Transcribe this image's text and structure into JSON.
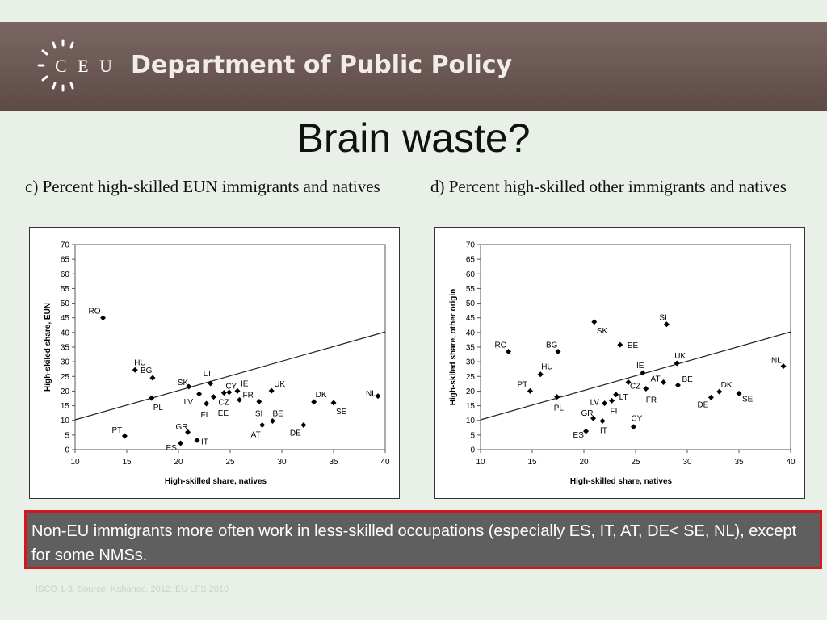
{
  "header": {
    "logo_text": "C E U",
    "department": "Department of Public Policy"
  },
  "slide": {
    "title": "Brain waste?",
    "note": "Non-EU immigrants more often work in less-skilled occupations (especially ES, IT, AT, DE< SE, NL), except for some NMSs.",
    "source": "ISCO 1-3. Source: Kahanec, 2012. EU LFS 2010"
  },
  "colors": {
    "banner": "#6b5652",
    "note_bg": "#5f5f5f",
    "note_border": "#d8151b"
  },
  "chart_data": [
    {
      "type": "scatter",
      "title": "c) Percent high-skilled EUN immigrants and natives",
      "xlabel": "High-skilled share, natives",
      "ylabel": "High-skiled share, EUN",
      "xlim": [
        10,
        40
      ],
      "ylim": [
        0,
        70
      ],
      "xticks": [
        10,
        15,
        20,
        25,
        30,
        35,
        40
      ],
      "yticks": [
        0,
        5,
        10,
        15,
        20,
        25,
        30,
        35,
        40,
        45,
        50,
        55,
        60,
        65,
        70
      ],
      "grid": false,
      "trendline": [
        [
          10,
          10.2
        ],
        [
          40,
          40.2
        ]
      ],
      "points": [
        {
          "label": "RO",
          "x": 12.7,
          "y": 45,
          "lx": -18,
          "ly": -8
        },
        {
          "label": "HU",
          "x": 15.8,
          "y": 27.2,
          "lx": -1,
          "ly": -9
        },
        {
          "label": "BG",
          "x": 17.5,
          "y": 24.5,
          "lx": -15,
          "ly": -9
        },
        {
          "label": "PL",
          "x": 17.4,
          "y": 17.6,
          "lx": 2,
          "ly": 12
        },
        {
          "label": "PT",
          "x": 14.8,
          "y": 4.7,
          "lx": -16,
          "ly": -7
        },
        {
          "label": "SK",
          "x": 21.0,
          "y": 21.5,
          "lx": -14,
          "ly": -5
        },
        {
          "label": "LT",
          "x": 23.1,
          "y": 22.6,
          "lx": -9,
          "ly": -12
        },
        {
          "label": "LV",
          "x": 22.0,
          "y": 19.0,
          "lx": -19,
          "ly": 10
        },
        {
          "label": "CY",
          "x": 24.4,
          "y": 19.4,
          "lx": 2,
          "ly": -8
        },
        {
          "label": "IE",
          "x": 25.7,
          "y": 20.0,
          "lx": 4,
          "ly": -9
        },
        {
          "label": "UK",
          "x": 29.0,
          "y": 20.1,
          "lx": 3,
          "ly": -8
        },
        {
          "label": "FR",
          "x": 25.9,
          "y": 17.0,
          "lx": 4,
          "ly": -6
        },
        {
          "label": "CZ",
          "x": 23.4,
          "y": 18.0,
          "lx": 6,
          "ly": 7
        },
        {
          "label": "EE",
          "x": 24.9,
          "y": 19.6,
          "lx": -14,
          "ly": 26
        },
        {
          "label": "FI",
          "x": 22.7,
          "y": 15.7,
          "lx": -7,
          "ly": 14
        },
        {
          "label": "SI",
          "x": 27.8,
          "y": 16.4,
          "lx": -5,
          "ly": 15
        },
        {
          "label": "BE",
          "x": 29.1,
          "y": 9.8,
          "lx": 0,
          "ly": -9
        },
        {
          "label": "AT",
          "x": 28.1,
          "y": 8.4,
          "lx": -14,
          "ly": 12
        },
        {
          "label": "DE",
          "x": 32.1,
          "y": 8.4,
          "lx": -17,
          "ly": 10
        },
        {
          "label": "DK",
          "x": 33.1,
          "y": 16.3,
          "lx": 2,
          "ly": -9
        },
        {
          "label": "SE",
          "x": 35.0,
          "y": 16.0,
          "lx": 3,
          "ly": 11
        },
        {
          "label": "NL",
          "x": 39.3,
          "y": 18.3,
          "lx": -15,
          "ly": -3
        },
        {
          "label": "GR",
          "x": 20.9,
          "y": 6.0,
          "lx": -15,
          "ly": -6
        },
        {
          "label": "ES",
          "x": 20.2,
          "y": 2.2,
          "lx": -18,
          "ly": 6
        },
        {
          "label": "IT",
          "x": 21.8,
          "y": 3.2,
          "lx": 5,
          "ly": 2
        }
      ]
    },
    {
      "type": "scatter",
      "title": "d) Percent high-skilled other immigrants and natives",
      "xlabel": "High-skilled share, natives",
      "ylabel": "High-skiled share, other origin",
      "xlim": [
        10,
        40
      ],
      "ylim": [
        0,
        70
      ],
      "xticks": [
        10,
        15,
        20,
        25,
        30,
        35,
        40
      ],
      "yticks": [
        0,
        5,
        10,
        15,
        20,
        25,
        30,
        35,
        40,
        45,
        50,
        55,
        60,
        65,
        70
      ],
      "grid": false,
      "trendline": [
        [
          10,
          10.2
        ],
        [
          40,
          40.2
        ]
      ],
      "points": [
        {
          "label": "RO",
          "x": 12.7,
          "y": 33.5,
          "lx": -17,
          "ly": -8
        },
        {
          "label": "BG",
          "x": 17.5,
          "y": 33.5,
          "lx": -15,
          "ly": -8
        },
        {
          "label": "HU",
          "x": 15.8,
          "y": 25.7,
          "lx": 1,
          "ly": -9
        },
        {
          "label": "PT",
          "x": 14.8,
          "y": 20.0,
          "lx": -16,
          "ly": -8
        },
        {
          "label": "PL",
          "x": 17.4,
          "y": 18.0,
          "lx": -4,
          "ly": 14
        },
        {
          "label": "SK",
          "x": 21.0,
          "y": 43.6,
          "lx": 3,
          "ly": 11
        },
        {
          "label": "SI",
          "x": 28.0,
          "y": 42.8,
          "lx": -9,
          "ly": -8
        },
        {
          "label": "EE",
          "x": 23.5,
          "y": 35.8,
          "lx": 9,
          "ly": 1
        },
        {
          "label": "UK",
          "x": 29.0,
          "y": 29.5,
          "lx": -3,
          "ly": -9
        },
        {
          "label": "IE",
          "x": 25.7,
          "y": 26.2,
          "lx": -8,
          "ly": -9
        },
        {
          "label": "AT",
          "x": 27.7,
          "y": 23.0,
          "lx": -16,
          "ly": -4
        },
        {
          "label": "BE",
          "x": 29.1,
          "y": 22.0,
          "lx": 5,
          "ly": -7
        },
        {
          "label": "CZ",
          "x": 24.3,
          "y": 23.0,
          "lx": 2,
          "ly": 5
        },
        {
          "label": "LT",
          "x": 23.1,
          "y": 18.8,
          "lx": 4,
          "ly": 3
        },
        {
          "label": "LV",
          "x": 22.0,
          "y": 15.8,
          "lx": -18,
          "ly": -1
        },
        {
          "label": "FI",
          "x": 22.7,
          "y": 16.7,
          "lx": -2,
          "ly": 13
        },
        {
          "label": "FR",
          "x": 26.0,
          "y": 20.8,
          "lx": 0,
          "ly": 14
        },
        {
          "label": "DK",
          "x": 33.1,
          "y": 19.8,
          "lx": 2,
          "ly": -8
        },
        {
          "label": "DE",
          "x": 32.3,
          "y": 17.8,
          "lx": -17,
          "ly": 9
        },
        {
          "label": "SE",
          "x": 35.0,
          "y": 19.2,
          "lx": 4,
          "ly": 7
        },
        {
          "label": "NL",
          "x": 39.3,
          "y": 28.5,
          "lx": -15,
          "ly": -7
        },
        {
          "label": "GR",
          "x": 20.9,
          "y": 10.7,
          "lx": -15,
          "ly": -6
        },
        {
          "label": "ES",
          "x": 20.2,
          "y": 6.3,
          "lx": -16,
          "ly": 5
        },
        {
          "label": "IT",
          "x": 21.8,
          "y": 9.8,
          "lx": -3,
          "ly": 12
        },
        {
          "label": "CY",
          "x": 24.8,
          "y": 7.8,
          "lx": -3,
          "ly": -10
        }
      ]
    }
  ]
}
